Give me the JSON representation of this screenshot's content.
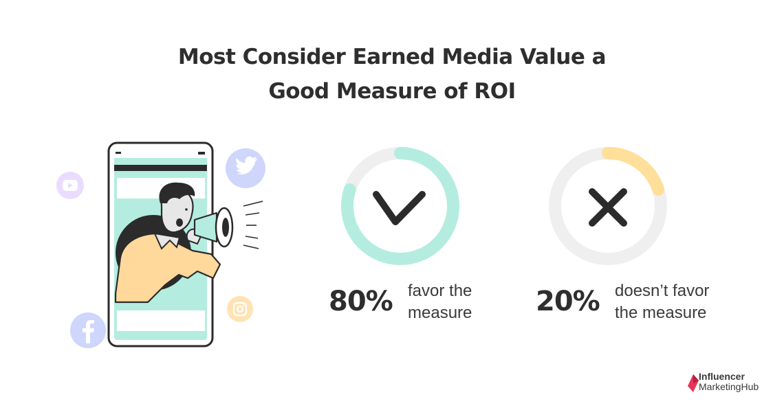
{
  "title": {
    "line1": "Most Consider Earned Media Value a",
    "line2": "Good Measure of ROI"
  },
  "chart_data": {
    "type": "pie",
    "title": "Most Consider Earned Media Value a Good Measure of ROI",
    "series": [
      {
        "label": "80%",
        "value": 80,
        "caption_line1": "favor the",
        "caption_line2": "measure",
        "color": "#b4eddf",
        "icon": "check-icon"
      },
      {
        "label": "20%",
        "value": 20,
        "caption_line1": "doesn’t favor",
        "caption_line2": "the measure",
        "color": "#ffdf99",
        "icon": "x-icon"
      }
    ],
    "track_color": "#efefef"
  },
  "brand": {
    "line1": "Influencer",
    "line2": "MarketingHub",
    "color": "#e8345a"
  },
  "illustration": {
    "icons": [
      "youtube-icon",
      "twitter-icon",
      "instagram-icon",
      "facebook-icon",
      "megaphone-icon"
    ],
    "colors": {
      "phone_screen": "#b4eddf",
      "youtube": "#eadcff",
      "twitter": "#cfd6fb",
      "instagram": "#ffe3b3",
      "facebook": "#cfd6fb"
    }
  }
}
